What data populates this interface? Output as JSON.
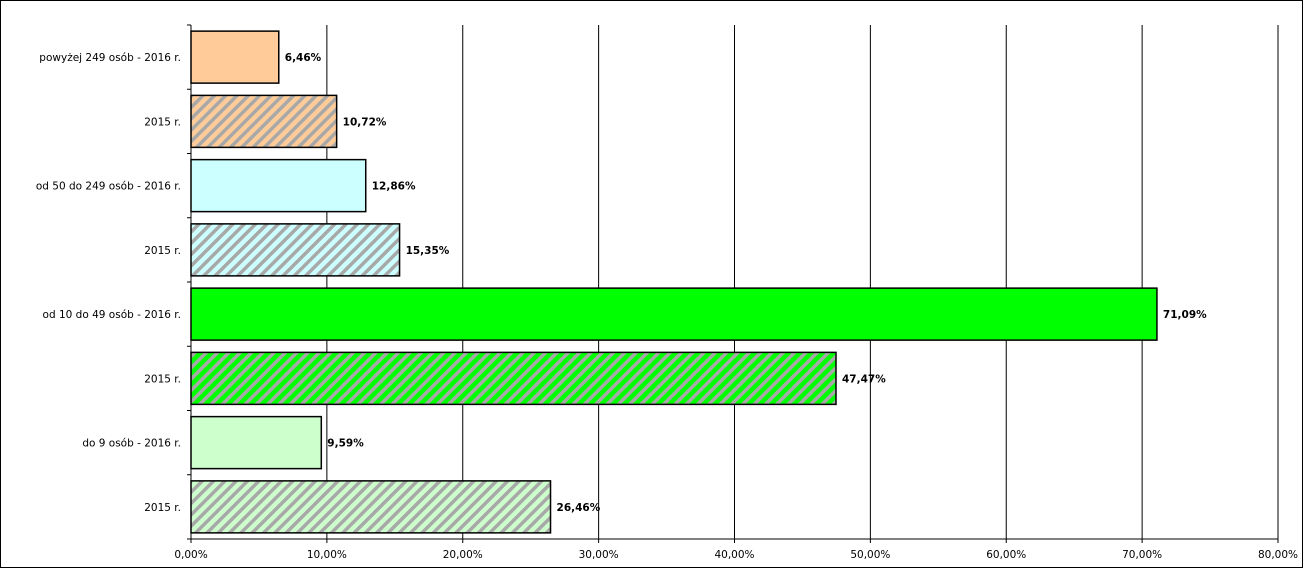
{
  "chart_data": {
    "type": "bar",
    "orientation": "horizontal",
    "categories": [
      "powyżej 249 osób - 2016 r.",
      "2015 r.",
      "od 50 do 249 osób - 2016 r.",
      "2015 r.",
      "od 10 do 49 osób - 2016 r.",
      "2015 r.",
      "do 9 osób - 2016 r.",
      "2015 r."
    ],
    "values": [
      6.46,
      10.72,
      12.86,
      15.35,
      71.09,
      47.47,
      9.59,
      26.46
    ],
    "data_labels": [
      "6,46%",
      "10,72%",
      "12,86%",
      "15,35%",
      "71,09%",
      "47,47%",
      "9,59%",
      "26,46%"
    ],
    "bar_colors": [
      "#ffcc99",
      "#ffcc99",
      "#ccffff",
      "#ccffff",
      "#00ff00",
      "#00ff00",
      "#ccffcc",
      "#ccffcc"
    ],
    "hatched": [
      false,
      true,
      false,
      true,
      false,
      true,
      false,
      true
    ],
    "xlim": [
      0,
      80
    ],
    "x_ticks": [
      0,
      10,
      20,
      30,
      40,
      50,
      60,
      70,
      80
    ],
    "x_tick_labels": [
      "0,00%",
      "10,00%",
      "20,00%",
      "30,00%",
      "40,00%",
      "50,00%",
      "60,00%",
      "70,00%",
      "80,00%"
    ],
    "grid": "vertical",
    "legend": "none",
    "title": "",
    "xlabel": "",
    "ylabel": ""
  }
}
